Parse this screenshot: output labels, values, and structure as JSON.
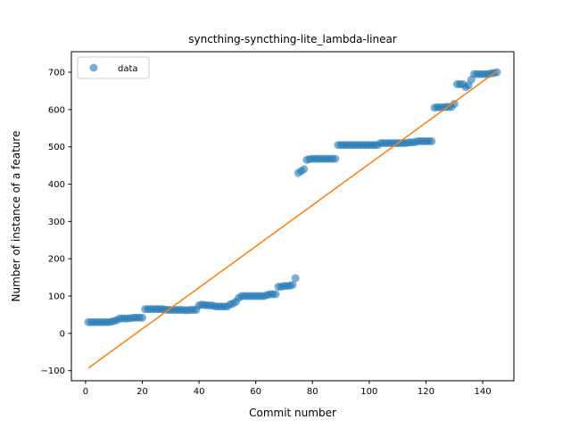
{
  "chart_data": {
    "type": "scatter",
    "title": "syncthing-syncthing-lite_lambda-linear",
    "xlabel": "Commit number",
    "ylabel": "Number of instance of a feature",
    "xlim": [
      -5,
      151
    ],
    "ylim": [
      -127,
      755
    ],
    "xticks": [
      0,
      20,
      40,
      60,
      80,
      100,
      120,
      140
    ],
    "yticks": [
      -100,
      0,
      100,
      200,
      300,
      400,
      500,
      600,
      700
    ],
    "legend": {
      "position": "upper-left",
      "entries": [
        "data"
      ]
    },
    "grid": false,
    "colors": {
      "data": "#1f77b4",
      "fit": "#ff7f0e"
    },
    "series": [
      {
        "name": "data",
        "kind": "scatter",
        "points": [
          [
            1,
            30
          ],
          [
            2,
            30
          ],
          [
            3,
            30
          ],
          [
            4,
            30
          ],
          [
            5,
            30
          ],
          [
            6,
            30
          ],
          [
            7,
            30
          ],
          [
            8,
            30
          ],
          [
            9,
            31
          ],
          [
            10,
            33
          ],
          [
            11,
            35
          ],
          [
            12,
            40
          ],
          [
            13,
            40
          ],
          [
            14,
            40
          ],
          [
            15,
            40
          ],
          [
            16,
            41
          ],
          [
            17,
            42
          ],
          [
            18,
            42
          ],
          [
            19,
            42
          ],
          [
            20,
            42
          ],
          [
            21,
            65
          ],
          [
            22,
            65
          ],
          [
            23,
            65
          ],
          [
            24,
            65
          ],
          [
            25,
            65
          ],
          [
            26,
            65
          ],
          [
            27,
            65
          ],
          [
            28,
            64
          ],
          [
            29,
            63
          ],
          [
            30,
            63
          ],
          [
            31,
            63
          ],
          [
            32,
            63
          ],
          [
            33,
            63
          ],
          [
            34,
            63
          ],
          [
            35,
            62
          ],
          [
            36,
            62
          ],
          [
            37,
            63
          ],
          [
            38,
            63
          ],
          [
            39,
            63
          ],
          [
            40,
            75
          ],
          [
            41,
            77
          ],
          [
            42,
            76
          ],
          [
            43,
            75
          ],
          [
            44,
            75
          ],
          [
            45,
            74
          ],
          [
            46,
            72
          ],
          [
            47,
            72
          ],
          [
            48,
            72
          ],
          [
            49,
            72
          ],
          [
            50,
            72
          ],
          [
            51,
            78
          ],
          [
            52,
            80
          ],
          [
            53,
            85
          ],
          [
            54,
            95
          ],
          [
            55,
            100
          ],
          [
            56,
            100
          ],
          [
            57,
            100
          ],
          [
            58,
            100
          ],
          [
            59,
            100
          ],
          [
            60,
            100
          ],
          [
            61,
            100
          ],
          [
            62,
            100
          ],
          [
            63,
            100
          ],
          [
            64,
            103
          ],
          [
            65,
            105
          ],
          [
            66,
            105
          ],
          [
            67,
            105
          ],
          [
            68,
            125
          ],
          [
            69,
            125
          ],
          [
            70,
            127
          ],
          [
            71,
            127
          ],
          [
            72,
            128
          ],
          [
            73,
            130
          ],
          [
            74,
            148
          ],
          [
            75,
            430
          ],
          [
            76,
            435
          ],
          [
            77,
            440
          ],
          [
            78,
            465
          ],
          [
            79,
            467
          ],
          [
            80,
            468
          ],
          [
            81,
            468
          ],
          [
            82,
            468
          ],
          [
            83,
            468
          ],
          [
            84,
            468
          ],
          [
            85,
            468
          ],
          [
            86,
            468
          ],
          [
            87,
            468
          ],
          [
            88,
            468
          ],
          [
            89,
            505
          ],
          [
            90,
            505
          ],
          [
            91,
            505
          ],
          [
            92,
            505
          ],
          [
            93,
            505
          ],
          [
            94,
            505
          ],
          [
            95,
            505
          ],
          [
            96,
            505
          ],
          [
            97,
            505
          ],
          [
            98,
            505
          ],
          [
            99,
            505
          ],
          [
            100,
            505
          ],
          [
            101,
            505
          ],
          [
            102,
            505
          ],
          [
            103,
            505
          ],
          [
            104,
            510
          ],
          [
            105,
            510
          ],
          [
            106,
            510
          ],
          [
            107,
            510
          ],
          [
            108,
            510
          ],
          [
            109,
            510
          ],
          [
            110,
            510
          ],
          [
            111,
            510
          ],
          [
            112,
            510
          ],
          [
            113,
            510
          ],
          [
            114,
            512
          ],
          [
            115,
            512
          ],
          [
            116,
            512
          ],
          [
            117,
            515
          ],
          [
            118,
            515
          ],
          [
            119,
            515
          ],
          [
            120,
            515
          ],
          [
            121,
            515
          ],
          [
            122,
            515
          ],
          [
            123,
            605
          ],
          [
            124,
            606
          ],
          [
            125,
            606
          ],
          [
            126,
            606
          ],
          [
            127,
            607
          ],
          [
            128,
            607
          ],
          [
            129,
            607
          ],
          [
            130,
            615
          ],
          [
            131,
            668
          ],
          [
            132,
            668
          ],
          [
            133,
            668
          ],
          [
            134,
            660
          ],
          [
            135,
            665
          ],
          [
            136,
            680
          ],
          [
            137,
            695
          ],
          [
            138,
            695
          ],
          [
            139,
            695
          ],
          [
            140,
            695
          ],
          [
            141,
            695
          ],
          [
            142,
            695
          ],
          [
            143,
            697
          ],
          [
            144,
            698
          ],
          [
            145,
            700
          ]
        ]
      },
      {
        "name": "",
        "kind": "line",
        "points": [
          [
            1,
            -93
          ],
          [
            145,
            703
          ]
        ]
      }
    ]
  }
}
